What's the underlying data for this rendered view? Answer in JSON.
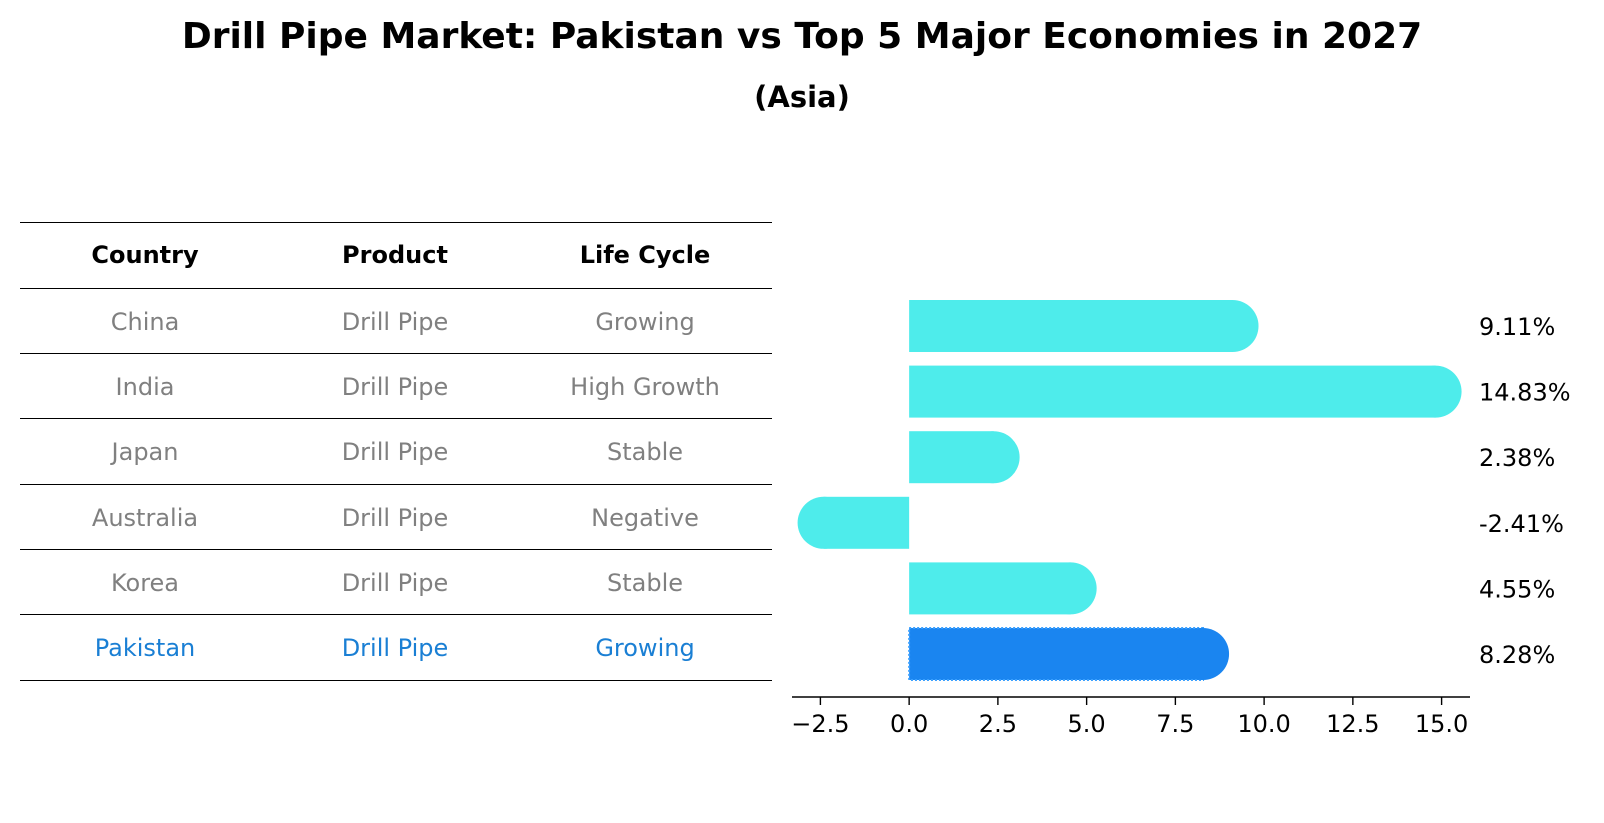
{
  "title": "Drill Pipe Market: Pakistan vs Top 5 Major Economies in 2027",
  "subtitle": "(Asia)",
  "table": {
    "headers": [
      "Country",
      "Product",
      "Life Cycle"
    ],
    "rows": [
      {
        "country": "China",
        "product": "Drill Pipe",
        "life_cycle": "Growing"
      },
      {
        "country": "India",
        "product": "Drill Pipe",
        "life_cycle": "High Growth"
      },
      {
        "country": "Japan",
        "product": "Drill Pipe",
        "life_cycle": "Stable"
      },
      {
        "country": "Australia",
        "product": "Drill Pipe",
        "life_cycle": "Negative"
      },
      {
        "country": "Korea",
        "product": "Drill Pipe",
        "life_cycle": "Stable"
      },
      {
        "country": "Pakistan",
        "product": "Drill Pipe",
        "life_cycle": "Growing"
      }
    ]
  },
  "colors": {
    "bar": "#4eeceb",
    "highlight": "#1a85f0",
    "muted_text": "#808080",
    "highlight_text": "#1a7fd4"
  },
  "chart_data": {
    "type": "bar",
    "orientation": "horizontal",
    "categories": [
      "China",
      "India",
      "Japan",
      "Australia",
      "Korea",
      "Pakistan"
    ],
    "values": [
      9.11,
      14.83,
      2.38,
      -2.41,
      4.55,
      8.28
    ],
    "value_labels": [
      "9.11%",
      "14.83%",
      "2.38%",
      "-2.41%",
      "4.55%",
      "8.28%"
    ],
    "highlight": "Pakistan",
    "xlim": [
      -3.3,
      15.8
    ],
    "xticks": [
      -2.5,
      0.0,
      2.5,
      5.0,
      7.5,
      10.0,
      12.5,
      15.0
    ],
    "xtick_labels": [
      "−2.5",
      "0.0",
      "2.5",
      "5.0",
      "7.5",
      "10.0",
      "12.5",
      "15.0"
    ],
    "xlabel": "",
    "ylabel": "",
    "grid": false
  }
}
